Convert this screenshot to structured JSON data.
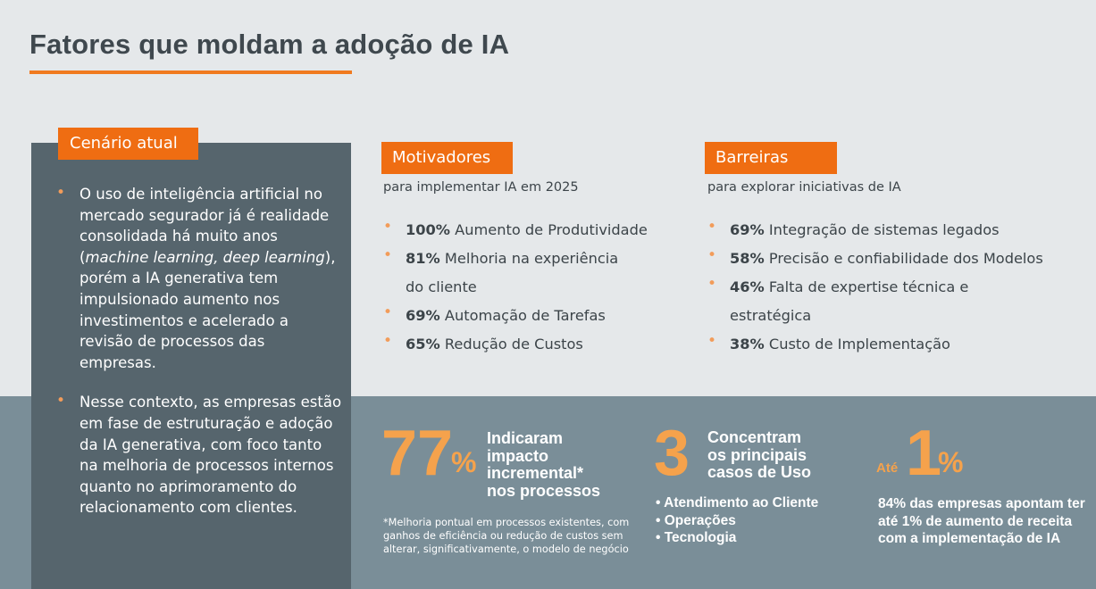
{
  "title": "Fatores que moldam a adoção de IA",
  "cenario": {
    "tag": "Cenário atual",
    "bullets": [
      {
        "pre": "O uso de inteligência artificial no mercado segurador já é realidade consolidada há muito anos (",
        "italic": "machine learning, deep learning",
        "post": "), porém a IA generativa tem impulsionado aumento nos investimentos e acelerado a revisão de processos das empresas."
      },
      {
        "text": "Nesse contexto, as empresas estão em fase de estruturação e adoção da IA generativa, com foco tanto na melhoria de processos internos quanto no aprimoramento do relacionamento com clientes."
      }
    ]
  },
  "motivadores": {
    "tag": "Motivadores",
    "subtitle": "para implementar IA em 2025",
    "items": [
      {
        "pct": "100%",
        "text": "Aumento de Produtividade"
      },
      {
        "pct": "81%",
        "text": "Melhoria na experiência",
        "text2": "do cliente"
      },
      {
        "pct": "69%",
        "text": "Automação de Tarefas"
      },
      {
        "pct": "65%",
        "text": "Redução de Custos"
      }
    ]
  },
  "barreiras": {
    "tag": "Barreiras",
    "subtitle": "para explorar iniciativas de IA",
    "items": [
      {
        "pct": "69%",
        "text": "Integração de sistemas legados"
      },
      {
        "pct": "58%",
        "text": "Precisão e confiabilidade dos Modelos"
      },
      {
        "pct": "46%",
        "text": "Falta de expertise técnica e",
        "text2": "estratégica"
      },
      {
        "pct": "38%",
        "text": "Custo de Implementação"
      }
    ]
  },
  "stats": {
    "s1": {
      "number": "77",
      "unit": "%",
      "l1": "Indicaram",
      "l2": "impacto",
      "l3": "incremental*",
      "l4": "nos processos",
      "note": "*Melhoria pontual em processos existentes, com ganhos de eficiência ou redução de custos sem alterar, significativamente, o modelo de negócio"
    },
    "s2": {
      "number": "3",
      "l1": "Concentram",
      "l2": "os principais",
      "l3": "casos de Uso",
      "uses": [
        "Atendimento ao Cliente",
        "Operações",
        "Tecnologia"
      ]
    },
    "s3": {
      "prefix": "Até",
      "number": "1",
      "unit": "%",
      "desc": "84% das empresas apontam ter até 1% de aumento de receita com a implementação de IA"
    }
  },
  "colors": {
    "accent": "#ef6d12",
    "dark_panel": "#56656d",
    "band": "#7a8e98",
    "stat_orange": "#f5a24c"
  }
}
